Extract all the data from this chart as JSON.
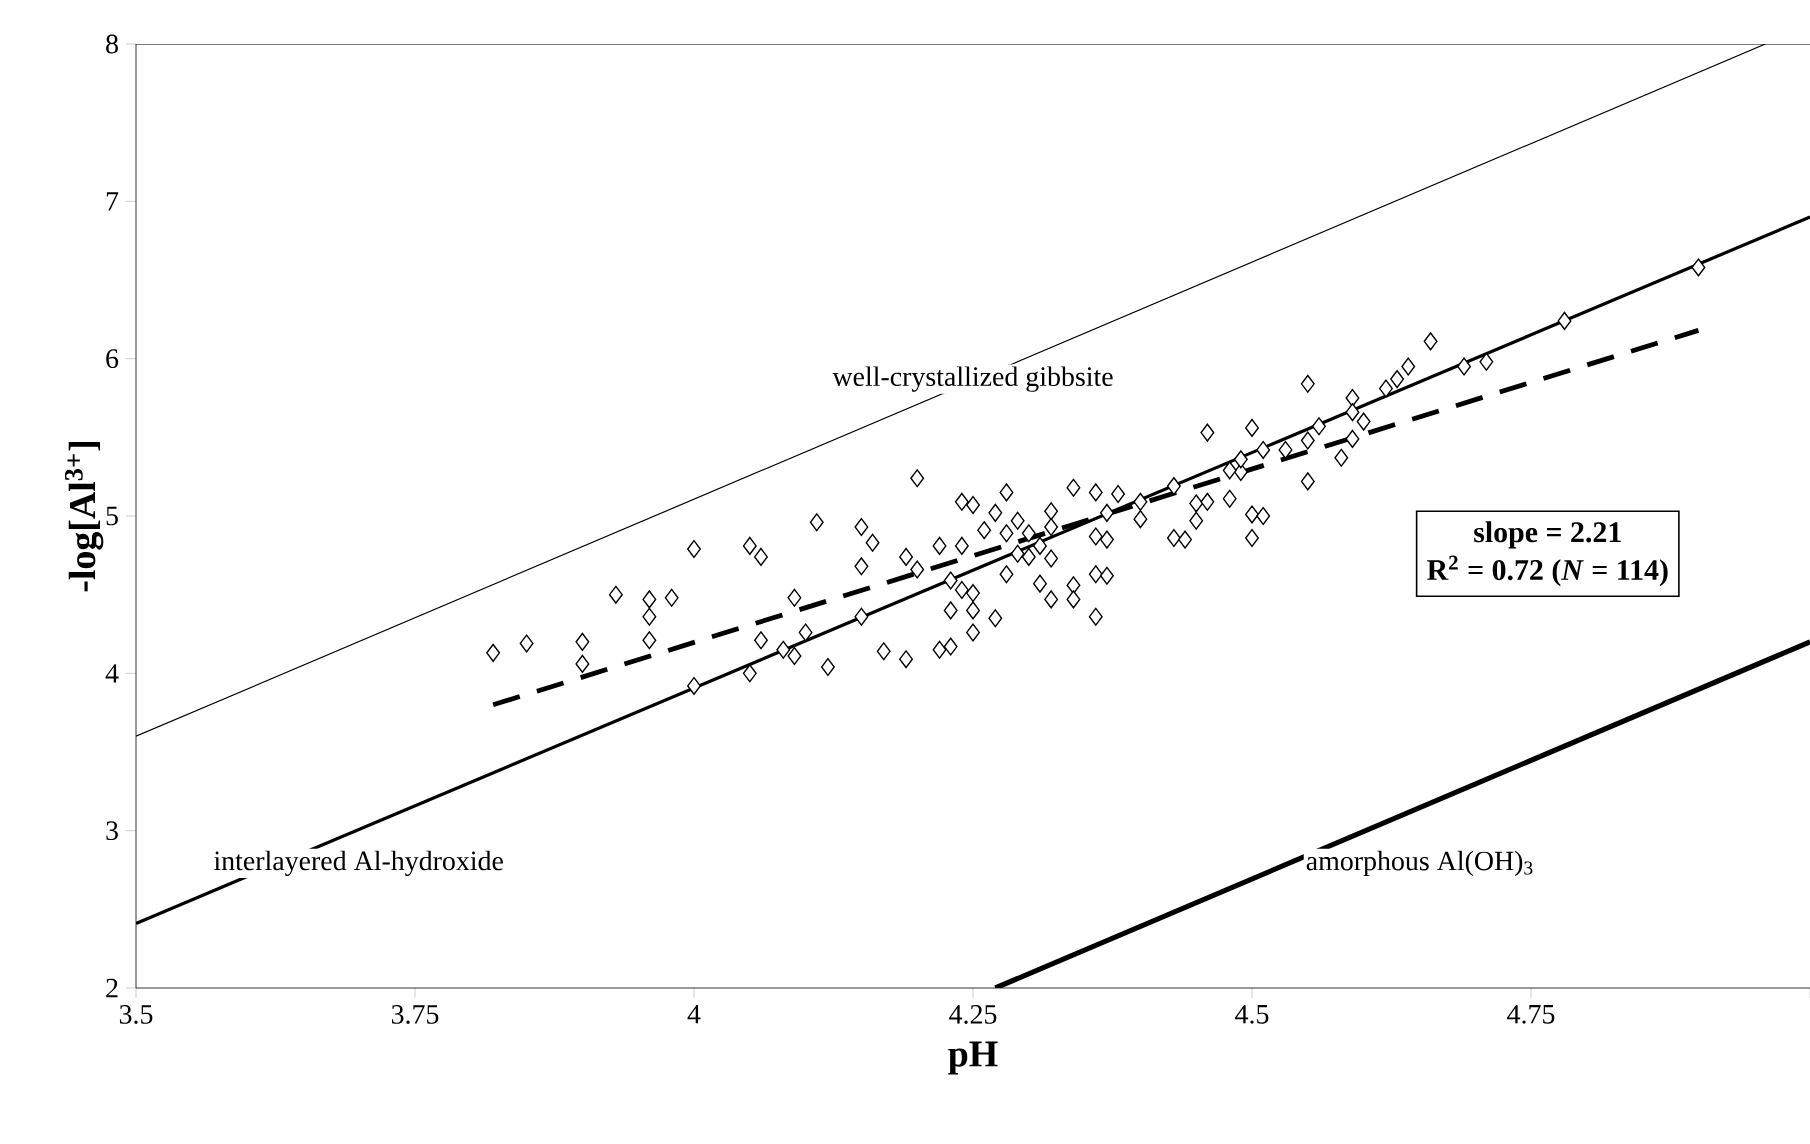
{
  "chart_data": {
    "type": "scatter",
    "xlabel": "pH",
    "ylabel": "-log[Al$^{3+}$]",
    "xlim": [
      3.5,
      5
    ],
    "ylim": [
      2,
      8
    ],
    "xticks": [
      3.5,
      3.75,
      4,
      4.25,
      4.5,
      4.75,
      {
        "value": 5,
        "label": null
      }
    ],
    "yticks": [
      2,
      3,
      4,
      5,
      6,
      7,
      8
    ],
    "grid": false,
    "series": [
      {
        "marker": "diamond",
        "color": "#000000",
        "x": [
          3.82,
          3.85,
          3.9,
          3.9,
          3.93,
          3.96,
          3.98,
          3.96,
          3.96,
          4.0,
          4.05,
          4.06,
          4.0,
          4.05,
          4.06,
          4.08,
          4.09,
          4.1,
          4.09,
          4.12,
          4.11,
          4.15,
          4.16,
          4.15,
          4.15,
          4.17,
          4.19,
          4.19,
          4.2,
          4.2,
          4.22,
          4.24,
          4.24,
          4.25,
          4.28,
          4.27,
          4.29,
          4.26,
          4.28,
          4.3,
          4.32,
          4.32,
          4.31,
          4.29,
          4.3,
          4.32,
          4.34,
          4.36,
          4.38,
          4.37,
          4.36,
          4.37,
          4.4,
          4.4,
          4.43,
          4.45,
          4.46,
          4.48,
          4.45,
          4.43,
          4.44,
          4.5,
          4.51,
          4.5,
          4.49,
          4.55,
          4.23,
          4.24,
          4.25,
          4.23,
          4.25,
          4.27,
          4.25,
          4.28,
          4.31,
          4.32,
          4.34,
          4.34,
          4.36,
          4.37,
          4.36,
          4.22,
          4.23,
          4.78,
          4.71,
          4.69,
          4.66,
          4.64,
          4.63,
          4.62,
          4.55,
          4.59,
          4.59,
          4.6,
          4.56,
          4.55,
          4.53,
          4.59,
          4.58,
          4.51,
          4.5,
          4.46,
          4.49,
          4.48,
          4.9
        ],
        "values": [
          4.13,
          4.19,
          4.2,
          4.06,
          4.5,
          4.47,
          4.48,
          4.36,
          4.21,
          4.79,
          4.81,
          4.74,
          3.92,
          4.0,
          4.21,
          4.15,
          4.48,
          4.26,
          4.11,
          4.04,
          4.96,
          4.93,
          4.83,
          4.68,
          4.36,
          4.14,
          4.09,
          4.74,
          5.24,
          4.66,
          4.81,
          4.81,
          5.09,
          5.07,
          5.15,
          5.02,
          4.97,
          4.91,
          4.89,
          4.89,
          5.03,
          4.93,
          4.81,
          4.76,
          4.74,
          4.73,
          5.18,
          5.15,
          5.14,
          5.02,
          4.87,
          4.85,
          4.98,
          5.09,
          5.19,
          5.08,
          5.09,
          5.11,
          4.97,
          4.86,
          4.85,
          5.01,
          5.0,
          4.86,
          5.28,
          5.22,
          4.59,
          4.53,
          4.51,
          4.4,
          4.4,
          4.35,
          4.26,
          4.63,
          4.57,
          4.47,
          4.56,
          4.47,
          4.63,
          4.62,
          4.36,
          4.15,
          4.17,
          6.24,
          5.98,
          5.95,
          6.11,
          5.95,
          5.87,
          5.81,
          5.84,
          5.75,
          5.66,
          5.6,
          5.57,
          5.48,
          5.42,
          5.49,
          5.37,
          5.42,
          5.56,
          5.53,
          5.36,
          5.29,
          6.58
        ]
      },
      {
        "type": "line",
        "color": "#000000",
        "line_style": "solid",
        "x": [
          3.5,
          4.96
        ],
        "values": [
          3.6,
          8.0
        ]
      },
      {
        "type": "line",
        "color": "#000000",
        "line_style": "solid",
        "x": [
          3.5,
          5
        ],
        "values": [
          2.41,
          6.9
        ]
      },
      {
        "type": "line",
        "color": "#000000",
        "line_style": "dashed",
        "x": [
          3.82,
          4.9
        ],
        "values": [
          3.8,
          6.18
        ]
      },
      {
        "type": "line",
        "color": "#000000",
        "line_style": "solid",
        "x": [
          4.27,
          5
        ],
        "values": [
          2.0,
          4.2
        ]
      }
    ],
    "annotations": [
      {
        "text": "well-crystallized gibbsite",
        "x": 4.25,
        "y": 5.87
      },
      "interlayered Al-hydroxide",
      "amorphous Al(OH)$_{3}$",
      "slope = 2.21",
      "R$^{2}$ = 0.72 (*N* = 114)"
    ]
  }
}
